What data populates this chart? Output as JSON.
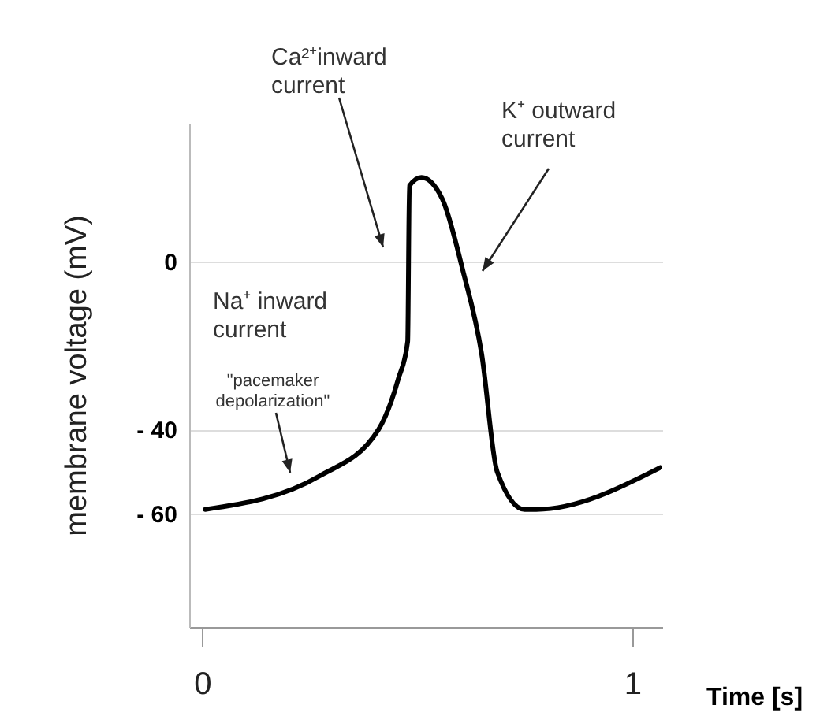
{
  "chart_data": {
    "type": "line",
    "xlabel": "Time [s]",
    "ylabel": "membrane voltage (mV)",
    "x": [
      0.007,
      0.274,
      0.41,
      0.456,
      0.478,
      0.482,
      0.51,
      0.558,
      0.606,
      0.65,
      0.686,
      0.75,
      0.777,
      1.066
    ],
    "series": [
      {
        "color": "#000000",
        "values": [
          -59,
          -51,
          -40,
          -28,
          -19,
          18,
          20,
          15,
          -2,
          -22,
          -50,
          -59,
          -59,
          -49
        ]
      }
    ],
    "xlim": [
      -0.03,
      1.07
    ],
    "ylim": [
      -87,
      33
    ],
    "xticks": [
      0,
      1
    ],
    "yticks": [
      0,
      {
        "value": -40,
        "label": "- 40"
      },
      {
        "value": -60,
        "label": "- 60"
      }
    ],
    "grid": "y",
    "marker": "none",
    "line_style": "solid",
    "annotations": [
      "Ca²⁺inward current",
      "K⁺ outward current",
      "Na⁺ inward current",
      "\"pacemaker depolarization\""
    ]
  }
}
